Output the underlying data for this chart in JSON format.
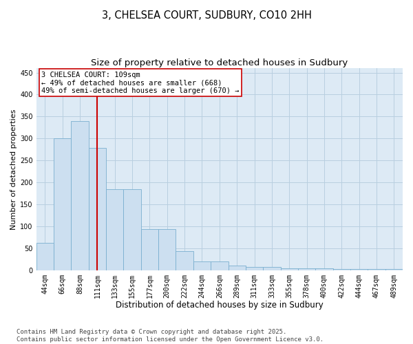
{
  "title_line1": "3, CHELSEA COURT, SUDBURY, CO10 2HH",
  "title_line2": "Size of property relative to detached houses in Sudbury",
  "xlabel": "Distribution of detached houses by size in Sudbury",
  "ylabel": "Number of detached properties",
  "categories": [
    "44sqm",
    "66sqm",
    "88sqm",
    "111sqm",
    "133sqm",
    "155sqm",
    "177sqm",
    "200sqm",
    "222sqm",
    "244sqm",
    "266sqm",
    "289sqm",
    "311sqm",
    "333sqm",
    "355sqm",
    "378sqm",
    "400sqm",
    "422sqm",
    "444sqm",
    "467sqm",
    "489sqm"
  ],
  "values": [
    62,
    301,
    340,
    278,
    184,
    184,
    93,
    93,
    44,
    20,
    20,
    10,
    7,
    7,
    5,
    5,
    4,
    2,
    2,
    2,
    2
  ],
  "bar_color": "#ccdff0",
  "bar_edge_color": "#7aafcf",
  "vline_x_index": 3,
  "vline_color": "#cc0000",
  "annotation_text": "3 CHELSEA COURT: 109sqm\n← 49% of detached houses are smaller (668)\n49% of semi-detached houses are larger (670) →",
  "annotation_box_color": "#ffffff",
  "annotation_box_edge": "#cc0000",
  "ylim": [
    0,
    460
  ],
  "yticks": [
    0,
    50,
    100,
    150,
    200,
    250,
    300,
    350,
    400,
    450
  ],
  "footer_text": "Contains HM Land Registry data © Crown copyright and database right 2025.\nContains public sector information licensed under the Open Government Licence v3.0.",
  "background_color": "#ffffff",
  "plot_bg_color": "#ddeaf5",
  "grid_color": "#b8cfe0",
  "title_fontsize": 10.5,
  "subtitle_fontsize": 9.5,
  "xlabel_fontsize": 8.5,
  "ylabel_fontsize": 8,
  "tick_fontsize": 7,
  "annotation_fontsize": 7.5,
  "footer_fontsize": 6.5
}
